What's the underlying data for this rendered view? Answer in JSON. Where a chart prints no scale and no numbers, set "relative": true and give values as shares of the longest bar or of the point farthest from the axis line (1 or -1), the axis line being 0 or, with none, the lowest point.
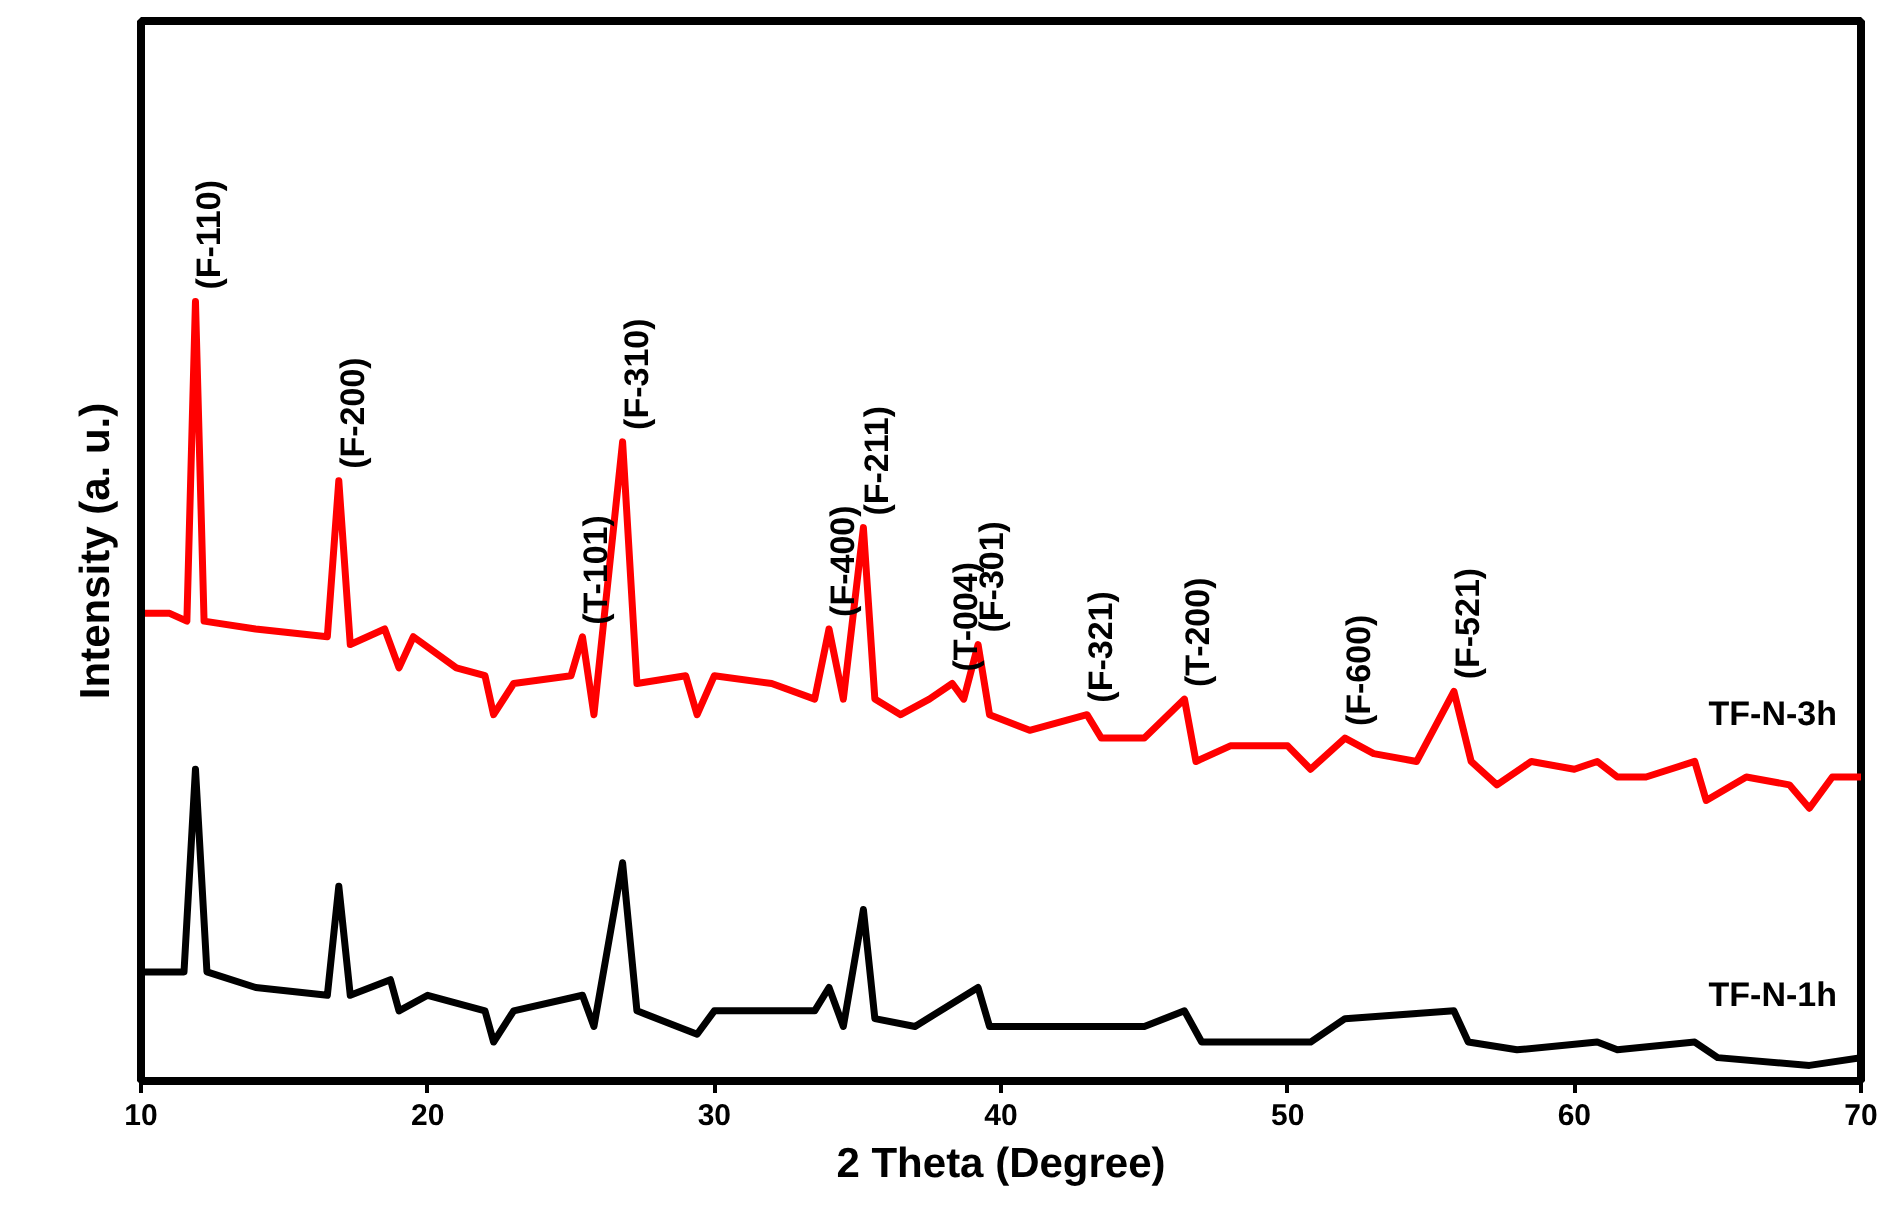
{
  "chart_data": {
    "type": "line",
    "relative": true,
    "xlabel": "2 Theta (Degree)",
    "ylabel": "Intensity (a. u.)",
    "xlim": [
      10,
      70
    ],
    "xticks": [
      10,
      20,
      30,
      40,
      50,
      60,
      70
    ],
    "grid": false,
    "legend": false,
    "tick_labels": "x",
    "line_style": "solid",
    "marker": "none",
    "series": [
      {
        "name": "TF-N-3h",
        "color": "#ff0000",
        "x": [
          10,
          11,
          11.6,
          11.9,
          12.2,
          14,
          16.5,
          16.9,
          17.3,
          18.5,
          19,
          19.5,
          21,
          22,
          22.3,
          23,
          25,
          25.4,
          25.8,
          26.8,
          27.3,
          29,
          29.4,
          30,
          32,
          33.5,
          34.0,
          34.5,
          35.2,
          35.6,
          36.5,
          37.5,
          38.3,
          38.7,
          39.2,
          39.6,
          41,
          43,
          43.5,
          45,
          46.4,
          46.8,
          48,
          50,
          50.8,
          52,
          53,
          54.5,
          55.8,
          56.4,
          57.3,
          58.5,
          60,
          60.8,
          61.5,
          62.5,
          64.2,
          64.6,
          66,
          67.5,
          68.2,
          69,
          70
        ],
        "values": [
          0.6,
          0.6,
          0.59,
          1.0,
          0.59,
          0.58,
          0.57,
          0.77,
          0.56,
          0.58,
          0.53,
          0.57,
          0.53,
          0.52,
          0.47,
          0.51,
          0.52,
          0.57,
          0.47,
          0.82,
          0.51,
          0.52,
          0.47,
          0.52,
          0.51,
          0.49,
          0.58,
          0.49,
          0.71,
          0.49,
          0.47,
          0.49,
          0.51,
          0.49,
          0.56,
          0.47,
          0.45,
          0.47,
          0.44,
          0.44,
          0.49,
          0.41,
          0.43,
          0.43,
          0.4,
          0.44,
          0.42,
          0.41,
          0.5,
          0.41,
          0.38,
          0.41,
          0.4,
          0.41,
          0.39,
          0.39,
          0.41,
          0.36,
          0.39,
          0.38,
          0.35,
          0.39,
          0.39
        ]
      },
      {
        "name": "TF-N-1h",
        "color": "#000000",
        "x": [
          10,
          11.5,
          11.9,
          12.3,
          14,
          16.5,
          16.9,
          17.3,
          18.7,
          19,
          20,
          22,
          22.3,
          23,
          25.4,
          25.8,
          26.8,
          27.3,
          29.4,
          30,
          33.5,
          34.0,
          34.5,
          35.2,
          35.6,
          37,
          39.2,
          39.6,
          43,
          45,
          46.4,
          47,
          50.8,
          52,
          55.8,
          56.3,
          58,
          60.8,
          61.5,
          64.2,
          65,
          68.2,
          70
        ],
        "values": [
          0.14,
          0.14,
          0.4,
          0.14,
          0.12,
          0.11,
          0.25,
          0.11,
          0.13,
          0.09,
          0.11,
          0.09,
          0.05,
          0.09,
          0.11,
          0.07,
          0.28,
          0.09,
          0.06,
          0.09,
          0.09,
          0.12,
          0.07,
          0.22,
          0.08,
          0.07,
          0.12,
          0.07,
          0.07,
          0.07,
          0.09,
          0.05,
          0.05,
          0.08,
          0.09,
          0.05,
          0.04,
          0.05,
          0.04,
          0.05,
          0.03,
          0.02,
          0.03
        ]
      }
    ],
    "annotations": [
      {
        "text": "(F-110)",
        "x": 11.9,
        "y": 1.0
      },
      {
        "text": "(F-200)",
        "x": 16.9,
        "y": 0.77
      },
      {
        "text": "(T-101)",
        "x": 25.4,
        "y": 0.57
      },
      {
        "text": "(F-310)",
        "x": 26.8,
        "y": 0.82
      },
      {
        "text": "(F-400)",
        "x": 34.0,
        "y": 0.58
      },
      {
        "text": "(F-211)",
        "x": 35.2,
        "y": 0.71
      },
      {
        "text": "(T-004)",
        "x": 38.3,
        "y": 0.51
      },
      {
        "text": "(F-301)",
        "x": 39.2,
        "y": 0.56
      },
      {
        "text": "(F-321)",
        "x": 43,
        "y": 0.47
      },
      {
        "text": "(T-200)",
        "x": 46.4,
        "y": 0.49
      },
      {
        "text": "(F-600)",
        "x": 52,
        "y": 0.44
      },
      {
        "text": "(F-521)",
        "x": 55.8,
        "y": 0.5
      }
    ]
  }
}
